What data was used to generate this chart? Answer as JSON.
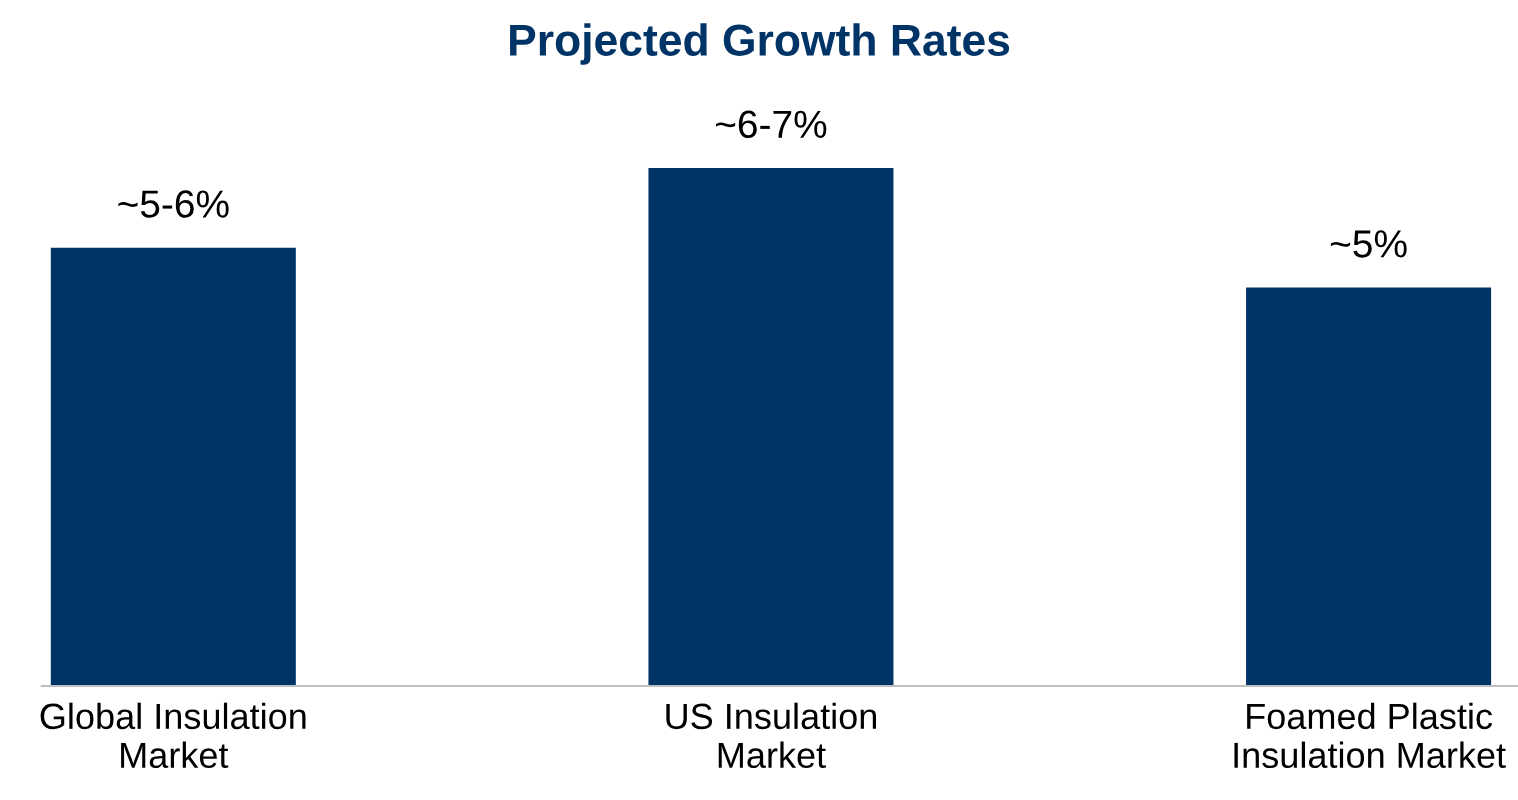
{
  "chart_data": {
    "type": "bar",
    "title": "Projected Growth Rates",
    "categories": [
      "Global Insulation\nMarket",
      "US Insulation\nMarket",
      "Foamed Plastic\nInsulation Market"
    ],
    "values": [
      5.5,
      6.5,
      5
    ],
    "value_labels": [
      "~5-6%",
      "~6-7%",
      "~5%"
    ],
    "color": "#003366",
    "grid": false,
    "legend": false
  }
}
